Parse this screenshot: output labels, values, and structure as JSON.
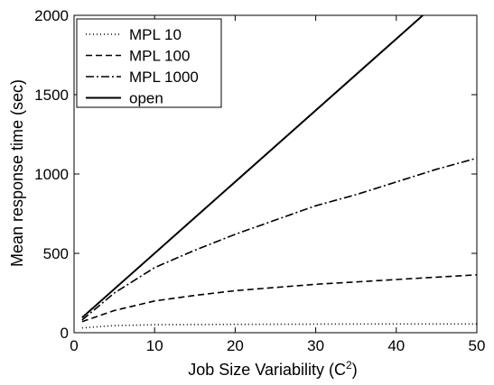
{
  "chart_data": {
    "type": "line",
    "title": "",
    "xlabel_main": "Job Size Variability (C",
    "xlabel_sup": "2",
    "xlabel_end": ")",
    "ylabel": "Mean response time (sec)",
    "xlim": [
      0,
      50
    ],
    "ylim": [
      0,
      2000
    ],
    "xticks": [
      0,
      10,
      20,
      30,
      40,
      50
    ],
    "yticks": [
      0,
      500,
      1000,
      1500,
      2000
    ],
    "grid": false,
    "legend_position": "top-left",
    "series": [
      {
        "name": "MPL 10",
        "style": "dotted",
        "x": [
          1,
          5,
          10,
          20,
          30,
          40,
          50
        ],
        "y": [
          30,
          45,
          50,
          53,
          54,
          55,
          55
        ]
      },
      {
        "name": "MPL 100",
        "style": "dashed",
        "x": [
          1,
          5,
          10,
          15,
          20,
          25,
          30,
          35,
          40,
          45,
          50
        ],
        "y": [
          70,
          140,
          200,
          235,
          265,
          285,
          305,
          320,
          335,
          350,
          365
        ]
      },
      {
        "name": "MPL 1000",
        "style": "dashdot",
        "x": [
          1,
          5,
          10,
          15,
          20,
          25,
          30,
          35,
          40,
          45,
          50
        ],
        "y": [
          80,
          250,
          410,
          520,
          620,
          710,
          800,
          870,
          950,
          1030,
          1100
        ]
      },
      {
        "name": "open",
        "style": "solid",
        "x": [
          1,
          43.3
        ],
        "y": [
          95,
          2000
        ]
      }
    ]
  }
}
